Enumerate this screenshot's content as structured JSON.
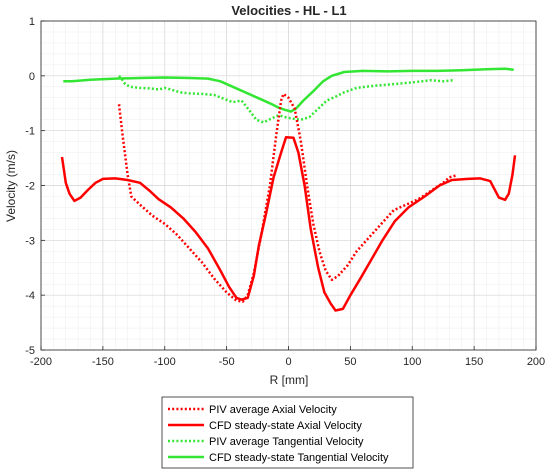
{
  "chart_data": {
    "type": "line",
    "title": "Velocities - HL - L1",
    "xlabel": "R [mm]",
    "ylabel": "Velocity (m/s)",
    "xlim": [
      -200,
      200
    ],
    "ylim": [
      -5,
      1
    ],
    "x_ticks": [
      -200,
      -150,
      -100,
      -50,
      0,
      50,
      100,
      150,
      200
    ],
    "y_ticks": [
      1,
      0,
      -1,
      -2,
      -3,
      -4,
      -5
    ],
    "grid": true,
    "minor_grid": true,
    "legend_position": "bottom-outside",
    "series": [
      {
        "name": "PIV average Axial Velocity",
        "color": "#ff0000",
        "style": "dotted",
        "points": [
          [
            -137,
            -0.52
          ],
          [
            -134,
            -1.1
          ],
          [
            -130,
            -1.8
          ],
          [
            -127,
            -2.2
          ],
          [
            -120,
            -2.35
          ],
          [
            -110,
            -2.55
          ],
          [
            -100,
            -2.7
          ],
          [
            -90,
            -2.9
          ],
          [
            -80,
            -3.15
          ],
          [
            -70,
            -3.4
          ],
          [
            -60,
            -3.7
          ],
          [
            -50,
            -3.95
          ],
          [
            -42,
            -4.1
          ],
          [
            -37,
            -4.12
          ],
          [
            -33,
            -4.0
          ],
          [
            -28,
            -3.6
          ],
          [
            -22,
            -2.9
          ],
          [
            -15,
            -2.0
          ],
          [
            -10,
            -1.1
          ],
          [
            -6,
            -0.45
          ],
          [
            -4,
            -0.33
          ],
          [
            0,
            -0.4
          ],
          [
            5,
            -0.6
          ],
          [
            10,
            -1.2
          ],
          [
            15,
            -2.0
          ],
          [
            20,
            -2.7
          ],
          [
            25,
            -3.2
          ],
          [
            30,
            -3.55
          ],
          [
            35,
            -3.72
          ],
          [
            40,
            -3.65
          ],
          [
            48,
            -3.45
          ],
          [
            55,
            -3.2
          ],
          [
            65,
            -2.95
          ],
          [
            75,
            -2.7
          ],
          [
            85,
            -2.45
          ],
          [
            95,
            -2.35
          ],
          [
            105,
            -2.25
          ],
          [
            115,
            -2.1
          ],
          [
            125,
            -1.95
          ],
          [
            130,
            -1.85
          ],
          [
            135,
            -1.82
          ]
        ]
      },
      {
        "name": "CFD steady-state Axial Velocity",
        "color": "#ff0000",
        "style": "solid",
        "points": [
          [
            -183,
            -1.48
          ],
          [
            -180,
            -1.95
          ],
          [
            -177,
            -2.15
          ],
          [
            -173,
            -2.28
          ],
          [
            -168,
            -2.22
          ],
          [
            -162,
            -2.08
          ],
          [
            -156,
            -1.95
          ],
          [
            -150,
            -1.88
          ],
          [
            -140,
            -1.87
          ],
          [
            -130,
            -1.9
          ],
          [
            -120,
            -1.95
          ],
          [
            -112,
            -2.1
          ],
          [
            -105,
            -2.25
          ],
          [
            -95,
            -2.4
          ],
          [
            -85,
            -2.6
          ],
          [
            -75,
            -2.85
          ],
          [
            -65,
            -3.15
          ],
          [
            -55,
            -3.55
          ],
          [
            -48,
            -3.85
          ],
          [
            -42,
            -4.05
          ],
          [
            -38,
            -4.08
          ],
          [
            -33,
            -4.05
          ],
          [
            -28,
            -3.65
          ],
          [
            -24,
            -3.1
          ],
          [
            -18,
            -2.5
          ],
          [
            -12,
            -1.85
          ],
          [
            -6,
            -1.4
          ],
          [
            -2,
            -1.12
          ],
          [
            4,
            -1.13
          ],
          [
            8,
            -1.4
          ],
          [
            13,
            -2.0
          ],
          [
            18,
            -2.8
          ],
          [
            24,
            -3.5
          ],
          [
            29,
            -3.95
          ],
          [
            34,
            -4.15
          ],
          [
            38,
            -4.28
          ],
          [
            44,
            -4.25
          ],
          [
            50,
            -4.0
          ],
          [
            58,
            -3.7
          ],
          [
            67,
            -3.35
          ],
          [
            76,
            -3.0
          ],
          [
            86,
            -2.65
          ],
          [
            97,
            -2.4
          ],
          [
            110,
            -2.2
          ],
          [
            122,
            -2.0
          ],
          [
            132,
            -1.9
          ],
          [
            145,
            -1.88
          ],
          [
            155,
            -1.87
          ],
          [
            163,
            -1.92
          ],
          [
            170,
            -2.22
          ],
          [
            175,
            -2.26
          ],
          [
            178,
            -2.15
          ],
          [
            181,
            -1.8
          ],
          [
            183,
            -1.45
          ]
        ]
      },
      {
        "name": "PIV average Tangential Velocity",
        "color": "#33e633",
        "style": "dotted",
        "points": [
          [
            -137,
            0.0
          ],
          [
            -135,
            -0.05
          ],
          [
            -132,
            -0.15
          ],
          [
            -128,
            -0.2
          ],
          [
            -120,
            -0.22
          ],
          [
            -112,
            -0.23
          ],
          [
            -105,
            -0.25
          ],
          [
            -100,
            -0.22
          ],
          [
            -95,
            -0.25
          ],
          [
            -88,
            -0.3
          ],
          [
            -80,
            -0.32
          ],
          [
            -70,
            -0.33
          ],
          [
            -60,
            -0.35
          ],
          [
            -52,
            -0.42
          ],
          [
            -45,
            -0.48
          ],
          [
            -38,
            -0.45
          ],
          [
            -32,
            -0.62
          ],
          [
            -26,
            -0.8
          ],
          [
            -20,
            -0.85
          ],
          [
            -14,
            -0.78
          ],
          [
            -8,
            -0.72
          ],
          [
            -3,
            -0.75
          ],
          [
            3,
            -0.78
          ],
          [
            10,
            -0.8
          ],
          [
            17,
            -0.75
          ],
          [
            24,
            -0.6
          ],
          [
            31,
            -0.45
          ],
          [
            38,
            -0.38
          ],
          [
            45,
            -0.3
          ],
          [
            55,
            -0.22
          ],
          [
            70,
            -0.18
          ],
          [
            85,
            -0.15
          ],
          [
            100,
            -0.12
          ],
          [
            115,
            -0.08
          ],
          [
            125,
            -0.1
          ],
          [
            133,
            -0.08
          ]
        ]
      },
      {
        "name": "CFD steady-state Tangential Velocity",
        "color": "#33e633",
        "style": "solid",
        "points": [
          [
            -182,
            -0.1
          ],
          [
            -175,
            -0.1
          ],
          [
            -160,
            -0.07
          ],
          [
            -140,
            -0.05
          ],
          [
            -120,
            -0.04
          ],
          [
            -100,
            -0.03
          ],
          [
            -80,
            -0.04
          ],
          [
            -65,
            -0.05
          ],
          [
            -55,
            -0.1
          ],
          [
            -45,
            -0.2
          ],
          [
            -35,
            -0.3
          ],
          [
            -25,
            -0.4
          ],
          [
            -15,
            -0.5
          ],
          [
            -8,
            -0.58
          ],
          [
            -3,
            -0.62
          ],
          [
            2,
            -0.65
          ],
          [
            6,
            -0.6
          ],
          [
            12,
            -0.45
          ],
          [
            20,
            -0.28
          ],
          [
            28,
            -0.1
          ],
          [
            35,
            0.0
          ],
          [
            45,
            0.07
          ],
          [
            60,
            0.09
          ],
          [
            80,
            0.08
          ],
          [
            100,
            0.09
          ],
          [
            120,
            0.09
          ],
          [
            140,
            0.1
          ],
          [
            160,
            0.12
          ],
          [
            175,
            0.13
          ],
          [
            182,
            0.11
          ]
        ]
      }
    ]
  }
}
